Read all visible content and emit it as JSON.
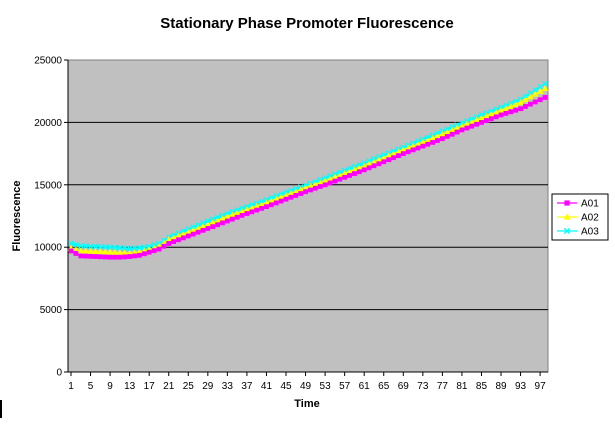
{
  "chart_data": {
    "type": "line",
    "title": "Stationary Phase Promoter Fluorescence",
    "xlabel": "Time",
    "ylabel": "Fluorescence",
    "ylim": [
      0,
      25000
    ],
    "yticks": [
      0,
      5000,
      10000,
      15000,
      20000,
      25000
    ],
    "xlim": [
      1,
      98
    ],
    "xtick_labels": [
      "1",
      "5",
      "9",
      "13",
      "17",
      "21",
      "25",
      "29",
      "33",
      "37",
      "41",
      "45",
      "49",
      "53",
      "57",
      "61",
      "65",
      "69",
      "73",
      "77",
      "81",
      "85",
      "89",
      "93",
      "97"
    ],
    "grid": "horizontal",
    "plot_background": "#c0c0c0",
    "legend_position": "right",
    "series": [
      {
        "name": "A01",
        "color": "#ff00ff",
        "marker": "square",
        "anchors": [
          [
            1,
            9700
          ],
          [
            3,
            9300
          ],
          [
            6,
            9250
          ],
          [
            9,
            9200
          ],
          [
            11,
            9200
          ],
          [
            13,
            9250
          ],
          [
            15,
            9350
          ],
          [
            17,
            9600
          ],
          [
            19,
            9850
          ],
          [
            21,
            10300
          ],
          [
            25,
            10900
          ],
          [
            29,
            11500
          ],
          [
            33,
            12100
          ],
          [
            37,
            12700
          ],
          [
            41,
            13250
          ],
          [
            45,
            13850
          ],
          [
            49,
            14450
          ],
          [
            53,
            15000
          ],
          [
            57,
            15600
          ],
          [
            61,
            16200
          ],
          [
            65,
            16850
          ],
          [
            69,
            17500
          ],
          [
            73,
            18100
          ],
          [
            77,
            18700
          ],
          [
            81,
            19400
          ],
          [
            85,
            20000
          ],
          [
            89,
            20600
          ],
          [
            93,
            21100
          ],
          [
            98,
            22000
          ]
        ]
      },
      {
        "name": "A02",
        "color": "#ffff00",
        "marker": "triangle",
        "anchors": [
          [
            1,
            9900
          ],
          [
            3,
            9700
          ],
          [
            6,
            9650
          ],
          [
            9,
            9600
          ],
          [
            11,
            9550
          ],
          [
            13,
            9500
          ],
          [
            15,
            9600
          ],
          [
            17,
            9800
          ],
          [
            19,
            10050
          ],
          [
            21,
            10600
          ],
          [
            25,
            11200
          ],
          [
            29,
            11800
          ],
          [
            33,
            12450
          ],
          [
            37,
            13000
          ],
          [
            41,
            13550
          ],
          [
            45,
            14150
          ],
          [
            49,
            14750
          ],
          [
            53,
            15300
          ],
          [
            57,
            15900
          ],
          [
            61,
            16500
          ],
          [
            65,
            17150
          ],
          [
            69,
            17800
          ],
          [
            73,
            18400
          ],
          [
            77,
            19050
          ],
          [
            81,
            19700
          ],
          [
            85,
            20350
          ],
          [
            89,
            20950
          ],
          [
            93,
            21600
          ],
          [
            98,
            22700
          ]
        ]
      },
      {
        "name": "A03",
        "color": "#00ffff",
        "marker": "x",
        "anchors": [
          [
            1,
            10300
          ],
          [
            3,
            10100
          ],
          [
            6,
            10050
          ],
          [
            9,
            10000
          ],
          [
            11,
            9950
          ],
          [
            13,
            9900
          ],
          [
            15,
            9950
          ],
          [
            17,
            10050
          ],
          [
            19,
            10300
          ],
          [
            21,
            10800
          ],
          [
            25,
            11450
          ],
          [
            29,
            12100
          ],
          [
            33,
            12700
          ],
          [
            37,
            13250
          ],
          [
            41,
            13800
          ],
          [
            45,
            14400
          ],
          [
            49,
            14950
          ],
          [
            53,
            15550
          ],
          [
            57,
            16150
          ],
          [
            61,
            16750
          ],
          [
            65,
            17400
          ],
          [
            69,
            18000
          ],
          [
            73,
            18650
          ],
          [
            77,
            19300
          ],
          [
            81,
            19950
          ],
          [
            85,
            20600
          ],
          [
            89,
            21200
          ],
          [
            93,
            21850
          ],
          [
            98,
            23100
          ]
        ]
      }
    ]
  }
}
